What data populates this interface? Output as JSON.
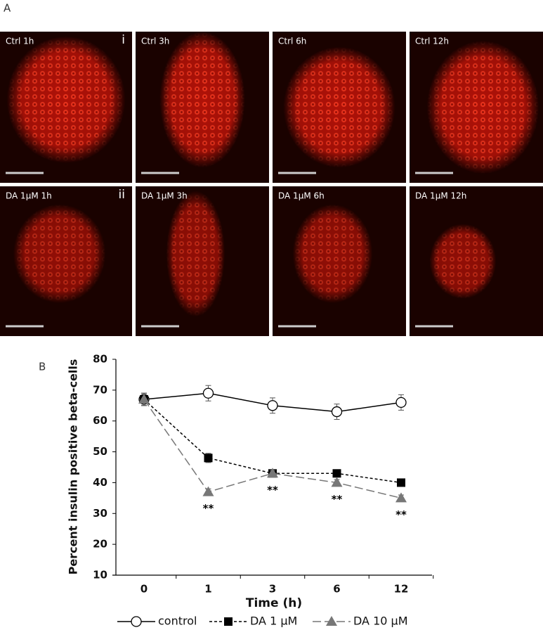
{
  "figure": {
    "panel_a": "A",
    "panel_b": "B",
    "images": [
      {
        "label": "Ctrl 1h",
        "row_label": "i"
      },
      {
        "label": "Ctrl 3h"
      },
      {
        "label": "Ctrl 6h"
      },
      {
        "label": "Ctrl 12h"
      },
      {
        "label": "DA 1μM 1h",
        "row_label": "ii"
      },
      {
        "label": "DA 1μM 3h"
      },
      {
        "label": "DA 1μM 6h"
      },
      {
        "label": "DA 1μM 12h"
      }
    ]
  },
  "chart_data": {
    "type": "line",
    "xlabel": "Time (h)",
    "ylabel": "Percent insulin positive beta-cells",
    "categories": [
      "0",
      "1",
      "3",
      "6",
      "12"
    ],
    "ylim": [
      10,
      80
    ],
    "yticks": [
      10,
      20,
      30,
      40,
      50,
      60,
      70,
      80
    ],
    "series": [
      {
        "name": "control",
        "color": "#000000",
        "marker": "open-circle",
        "dash": "solid",
        "values": [
          67,
          69,
          65,
          63,
          66
        ],
        "errors": [
          2,
          2.5,
          2.5,
          2.5,
          2.5
        ]
      },
      {
        "name": "DA 1 μM",
        "color": "#000000",
        "marker": "square",
        "dash": "short",
        "values": [
          67,
          48,
          43,
          43,
          40
        ],
        "errors": [
          2,
          1.5,
          1,
          1,
          1
        ]
      },
      {
        "name": "DA 10 μM",
        "color": "#777777",
        "marker": "triangle",
        "dash": "long",
        "values": [
          67,
          37,
          43,
          40,
          35
        ],
        "errors": [
          2,
          1,
          1,
          1,
          1
        ]
      }
    ],
    "annotations": [
      {
        "text": "**",
        "category": "1"
      },
      {
        "text": "**",
        "category": "3"
      },
      {
        "text": "**",
        "category": "6"
      },
      {
        "text": "**",
        "category": "12"
      }
    ],
    "legend": "bottom"
  }
}
